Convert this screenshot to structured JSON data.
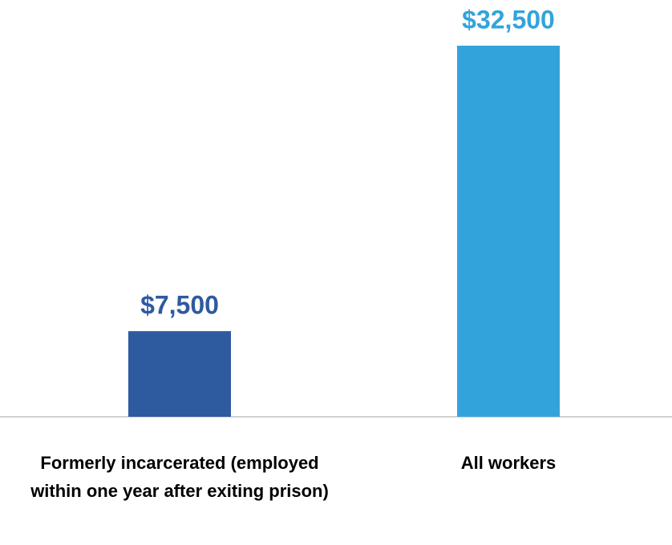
{
  "chart_data": {
    "type": "bar",
    "categories": [
      "Formerly incarcerated (employed within one year after exiting prison)",
      "All workers"
    ],
    "values": [
      7500,
      32500
    ],
    "value_labels": [
      "$7,500",
      "$32,500"
    ],
    "colors": [
      "#2e5aa0",
      "#33a4db"
    ],
    "ylim": [
      0,
      32500
    ]
  }
}
